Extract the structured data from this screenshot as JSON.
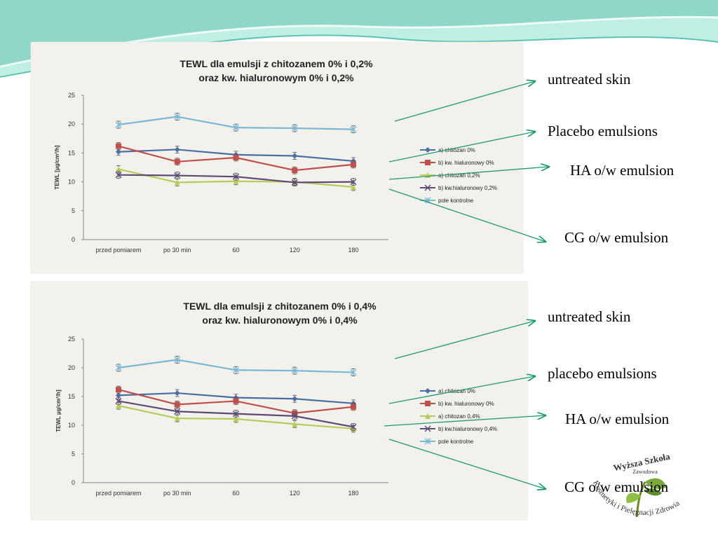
{
  "chart_data": [
    {
      "type": "line",
      "title": [
        "TEWL dla emulsji z chitozanem 0% i 0,2%",
        "oraz kw. hialuronowym 0% i 0,2%"
      ],
      "ylabel": "TEWL [µg/cm²/h]",
      "categories": [
        "przed pomiarem",
        "po 30 min",
        "60",
        "120",
        "180"
      ],
      "ylim": [
        0,
        25
      ],
      "yticks": [
        "0",
        "5",
        "10",
        "15",
        "20",
        "25"
      ],
      "series": [
        {
          "name": "a) chitozan 0%",
          "values": [
            15.2,
            15.6,
            14.7,
            14.5,
            13.6
          ],
          "color": "#4a6fa5",
          "marker": "diamond"
        },
        {
          "name": "b) kw. hialuronowy 0%",
          "values": [
            16.2,
            13.5,
            14.2,
            12.0,
            13.0
          ],
          "color": "#c0504d",
          "marker": "square"
        },
        {
          "name": "a) chitozan 0,2%",
          "values": [
            12.2,
            9.9,
            10.1,
            10.0,
            9.1
          ],
          "color": "#b9cc5a",
          "marker": "triangle"
        },
        {
          "name": "b) kw.hialuronowy 0,2%",
          "values": [
            11.2,
            11.1,
            10.9,
            9.9,
            10.0
          ],
          "color": "#5d4a78",
          "marker": "x"
        },
        {
          "name": "pole kontrolne",
          "values": [
            19.9,
            21.3,
            19.4,
            19.3,
            19.1
          ],
          "color": "#7bb7d6",
          "marker": "star"
        }
      ]
    },
    {
      "type": "line",
      "title": [
        "TEWL dla emulsji z chitozanem 0% i 0,4%",
        "oraz kw. hialuronowym 0% i 0,4%"
      ],
      "ylabel": "TEWL µg/cm²/h]",
      "categories": [
        "przed pomiarem",
        "po 30 min",
        "60",
        "120",
        "180"
      ],
      "ylim": [
        0,
        25
      ],
      "yticks": [
        "0",
        "5",
        "10",
        "15",
        "20",
        "25"
      ],
      "series": [
        {
          "name": "a) chitozan 0%",
          "values": [
            15.2,
            15.6,
            14.8,
            14.6,
            13.8
          ],
          "color": "#4a6fa5",
          "marker": "diamond"
        },
        {
          "name": "b) kw. hialuronowy 0%",
          "values": [
            16.2,
            13.6,
            14.2,
            12.1,
            13.2
          ],
          "color": "#c0504d",
          "marker": "square"
        },
        {
          "name": "a) chitozan 0,4%",
          "values": [
            13.4,
            11.2,
            11.1,
            10.2,
            9.4
          ],
          "color": "#b9cc5a",
          "marker": "triangle"
        },
        {
          "name": "b) kw.hialuronowy 0,4%",
          "values": [
            14.2,
            12.4,
            12.0,
            11.6,
            9.7
          ],
          "color": "#5d4a78",
          "marker": "x"
        },
        {
          "name": "pole kontrolne",
          "values": [
            20.0,
            21.4,
            19.6,
            19.5,
            19.2
          ],
          "color": "#7bb7d6",
          "marker": "star"
        }
      ]
    }
  ],
  "annotations_top": [
    "untreated skin",
    "Placebo emulsions",
    "HA o/w emulsion",
    "CG o/w emulsion"
  ],
  "annotations_bottom": [
    "untreated skin",
    "placebo emulsions",
    "HA o/w emulsion",
    "CG o/w emulsion"
  ],
  "logo": {
    "line1": "Wyższa Szkoła",
    "line2": "Zawodowa",
    "line3": "Kosmetyki i Pielęgnacji Zdrowia"
  },
  "colors": {
    "wave": "#8fd8c9",
    "arrow": "#1f9a6e"
  }
}
